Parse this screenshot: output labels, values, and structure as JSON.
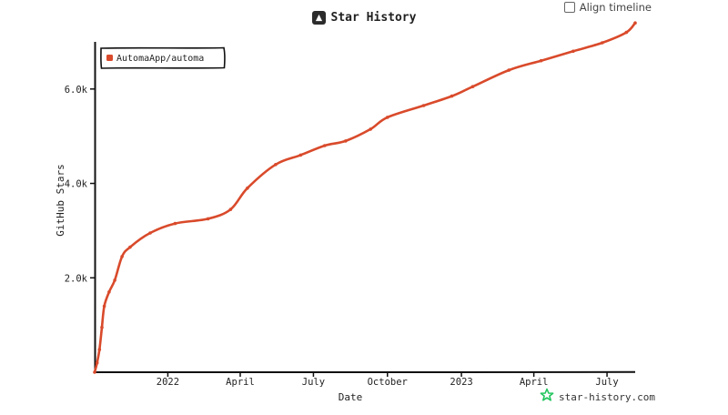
{
  "header": {
    "title": "Star History",
    "logo_icon": "star-history-logo-icon",
    "align_timeline_label": "Align timeline"
  },
  "footer": {
    "brand_text": "star-history.com",
    "brand_icon": "star-history-green-star-icon",
    "brand_color": "#22c55e"
  },
  "chart_data": {
    "type": "line",
    "title": "Star History",
    "xlabel": "Date",
    "ylabel": "GitHub Stars",
    "ylim": [
      0,
      7500
    ],
    "xlim": [
      "2021-10-02",
      "2023-08-05"
    ],
    "x_tick_labels": [
      {
        "date": "2022-01-01",
        "label": "2022"
      },
      {
        "date": "2022-04-01",
        "label": "April"
      },
      {
        "date": "2022-07-01",
        "label": "July"
      },
      {
        "date": "2022-10-01",
        "label": "October"
      },
      {
        "date": "2023-01-01",
        "label": "2023"
      },
      {
        "date": "2023-04-01",
        "label": "April"
      },
      {
        "date": "2023-07-01",
        "label": "July"
      }
    ],
    "y_tick_labels": [
      {
        "value": 2000,
        "label": "2.0k"
      },
      {
        "value": 4000,
        "label": "4.0k"
      },
      {
        "value": 6000,
        "label": "6.0k"
      }
    ],
    "legend_position": "top-left",
    "grid": false,
    "series": [
      {
        "name": "AutomaApp/automa",
        "color": "#d94a2b",
        "points": [
          {
            "x": "2021-10-02",
            "y": 0
          },
          {
            "x": "2021-10-05",
            "y": 200
          },
          {
            "x": "2021-10-08",
            "y": 480
          },
          {
            "x": "2021-10-11",
            "y": 950
          },
          {
            "x": "2021-10-14",
            "y": 1400
          },
          {
            "x": "2021-10-20",
            "y": 1700
          },
          {
            "x": "2021-10-27",
            "y": 1950
          },
          {
            "x": "2021-11-05",
            "y": 2450
          },
          {
            "x": "2021-11-15",
            "y": 2650
          },
          {
            "x": "2021-12-10",
            "y": 2950
          },
          {
            "x": "2022-01-10",
            "y": 3150
          },
          {
            "x": "2022-02-20",
            "y": 3250
          },
          {
            "x": "2022-03-20",
            "y": 3450
          },
          {
            "x": "2022-04-10",
            "y": 3900
          },
          {
            "x": "2022-05-15",
            "y": 4400
          },
          {
            "x": "2022-06-15",
            "y": 4600
          },
          {
            "x": "2022-07-15",
            "y": 4800
          },
          {
            "x": "2022-08-10",
            "y": 4900
          },
          {
            "x": "2022-09-10",
            "y": 5150
          },
          {
            "x": "2022-10-01",
            "y": 5400
          },
          {
            "x": "2022-11-15",
            "y": 5650
          },
          {
            "x": "2022-12-20",
            "y": 5850
          },
          {
            "x": "2023-01-15",
            "y": 6050
          },
          {
            "x": "2023-03-01",
            "y": 6400
          },
          {
            "x": "2023-04-10",
            "y": 6600
          },
          {
            "x": "2023-05-20",
            "y": 6800
          },
          {
            "x": "2023-06-25",
            "y": 6980
          },
          {
            "x": "2023-07-25",
            "y": 7200
          },
          {
            "x": "2023-08-05",
            "y": 7400
          }
        ]
      }
    ]
  }
}
